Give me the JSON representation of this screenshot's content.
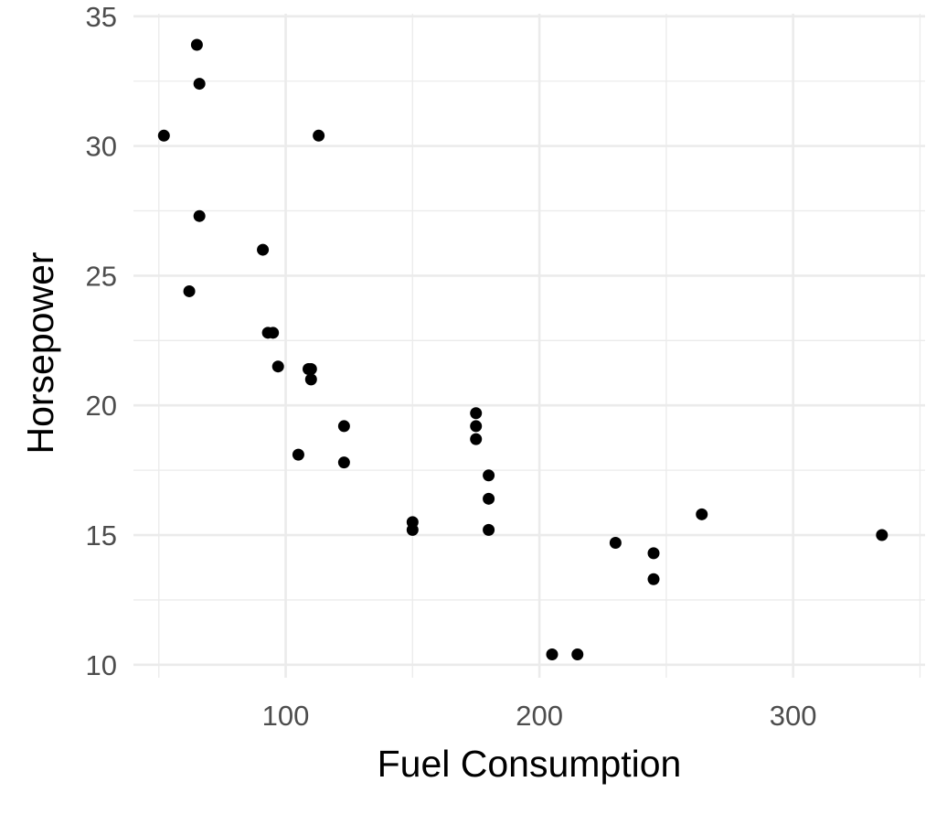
{
  "chart_data": {
    "type": "scatter",
    "title": "",
    "xlabel": "Fuel Consumption",
    "ylabel": "Horsepower",
    "xlim": [
      40,
      352
    ],
    "ylim": [
      9.5,
      35.1
    ],
    "x_ticks": [
      100,
      200,
      300
    ],
    "y_ticks": [
      10,
      15,
      20,
      25,
      30,
      35
    ],
    "x_tick_labels": [
      "100",
      "200",
      "300"
    ],
    "y_tick_labels": [
      "10",
      "15",
      "20",
      "25",
      "30",
      "35"
    ],
    "grid": true,
    "theme": "minimal",
    "point_color": "#000000",
    "grid_color": "#ebebeb",
    "points": [
      {
        "x": 52,
        "y": 30.4
      },
      {
        "x": 65,
        "y": 33.9
      },
      {
        "x": 66,
        "y": 32.4
      },
      {
        "x": 66,
        "y": 27.3
      },
      {
        "x": 62,
        "y": 24.4
      },
      {
        "x": 113,
        "y": 30.4
      },
      {
        "x": 91,
        "y": 26.0
      },
      {
        "x": 93,
        "y": 22.8
      },
      {
        "x": 95,
        "y": 22.8
      },
      {
        "x": 97,
        "y": 21.5
      },
      {
        "x": 109,
        "y": 21.4
      },
      {
        "x": 110,
        "y": 21.4
      },
      {
        "x": 110,
        "y": 21.0
      },
      {
        "x": 105,
        "y": 18.1
      },
      {
        "x": 123,
        "y": 19.2
      },
      {
        "x": 123,
        "y": 17.8
      },
      {
        "x": 150,
        "y": 15.5
      },
      {
        "x": 150,
        "y": 15.2
      },
      {
        "x": 175,
        "y": 19.7
      },
      {
        "x": 175,
        "y": 19.2
      },
      {
        "x": 175,
        "y": 18.7
      },
      {
        "x": 180,
        "y": 17.3
      },
      {
        "x": 180,
        "y": 16.4
      },
      {
        "x": 180,
        "y": 15.2
      },
      {
        "x": 205,
        "y": 10.4
      },
      {
        "x": 215,
        "y": 10.4
      },
      {
        "x": 230,
        "y": 14.7
      },
      {
        "x": 245,
        "y": 14.3
      },
      {
        "x": 245,
        "y": 13.3
      },
      {
        "x": 264,
        "y": 15.8
      },
      {
        "x": 335,
        "y": 15.0
      }
    ]
  }
}
